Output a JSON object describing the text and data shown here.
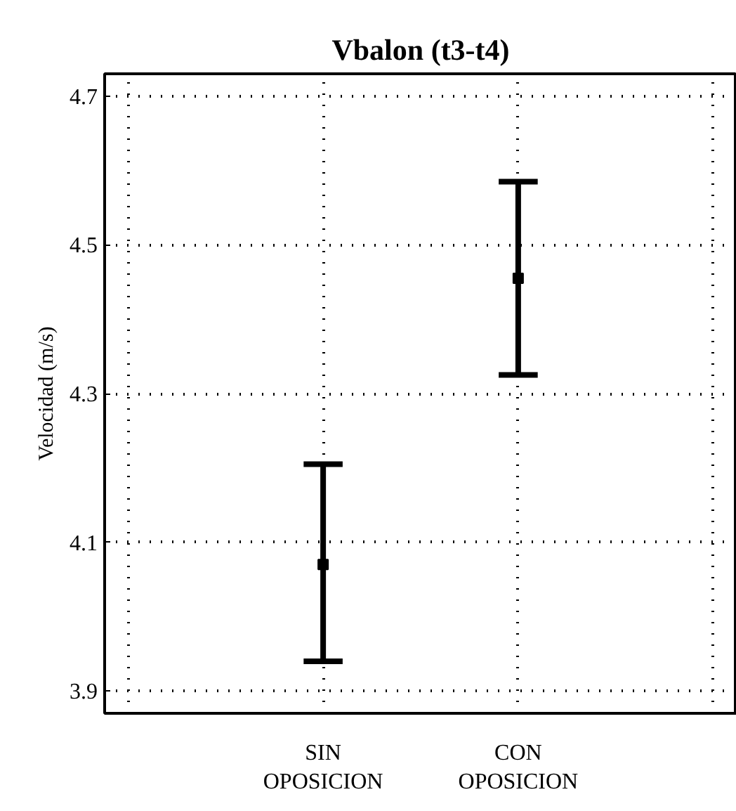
{
  "chart_data": {
    "type": "scatter",
    "title": "Vbalon (t3-t4)",
    "ylabel": "Velocidad (m/s)",
    "categories": [
      "SIN OPOSICION",
      "CON OPOSICION"
    ],
    "values": [
      4.07,
      4.455
    ],
    "errors": [
      [
        3.94,
        4.205
      ],
      [
        4.325,
        4.585
      ]
    ],
    "color": "#000000",
    "ylim": [
      3.87,
      4.73
    ],
    "yticks": [
      3.9,
      4.1,
      4.3,
      4.5,
      4.7
    ],
    "grid": true,
    "marker": "square"
  }
}
